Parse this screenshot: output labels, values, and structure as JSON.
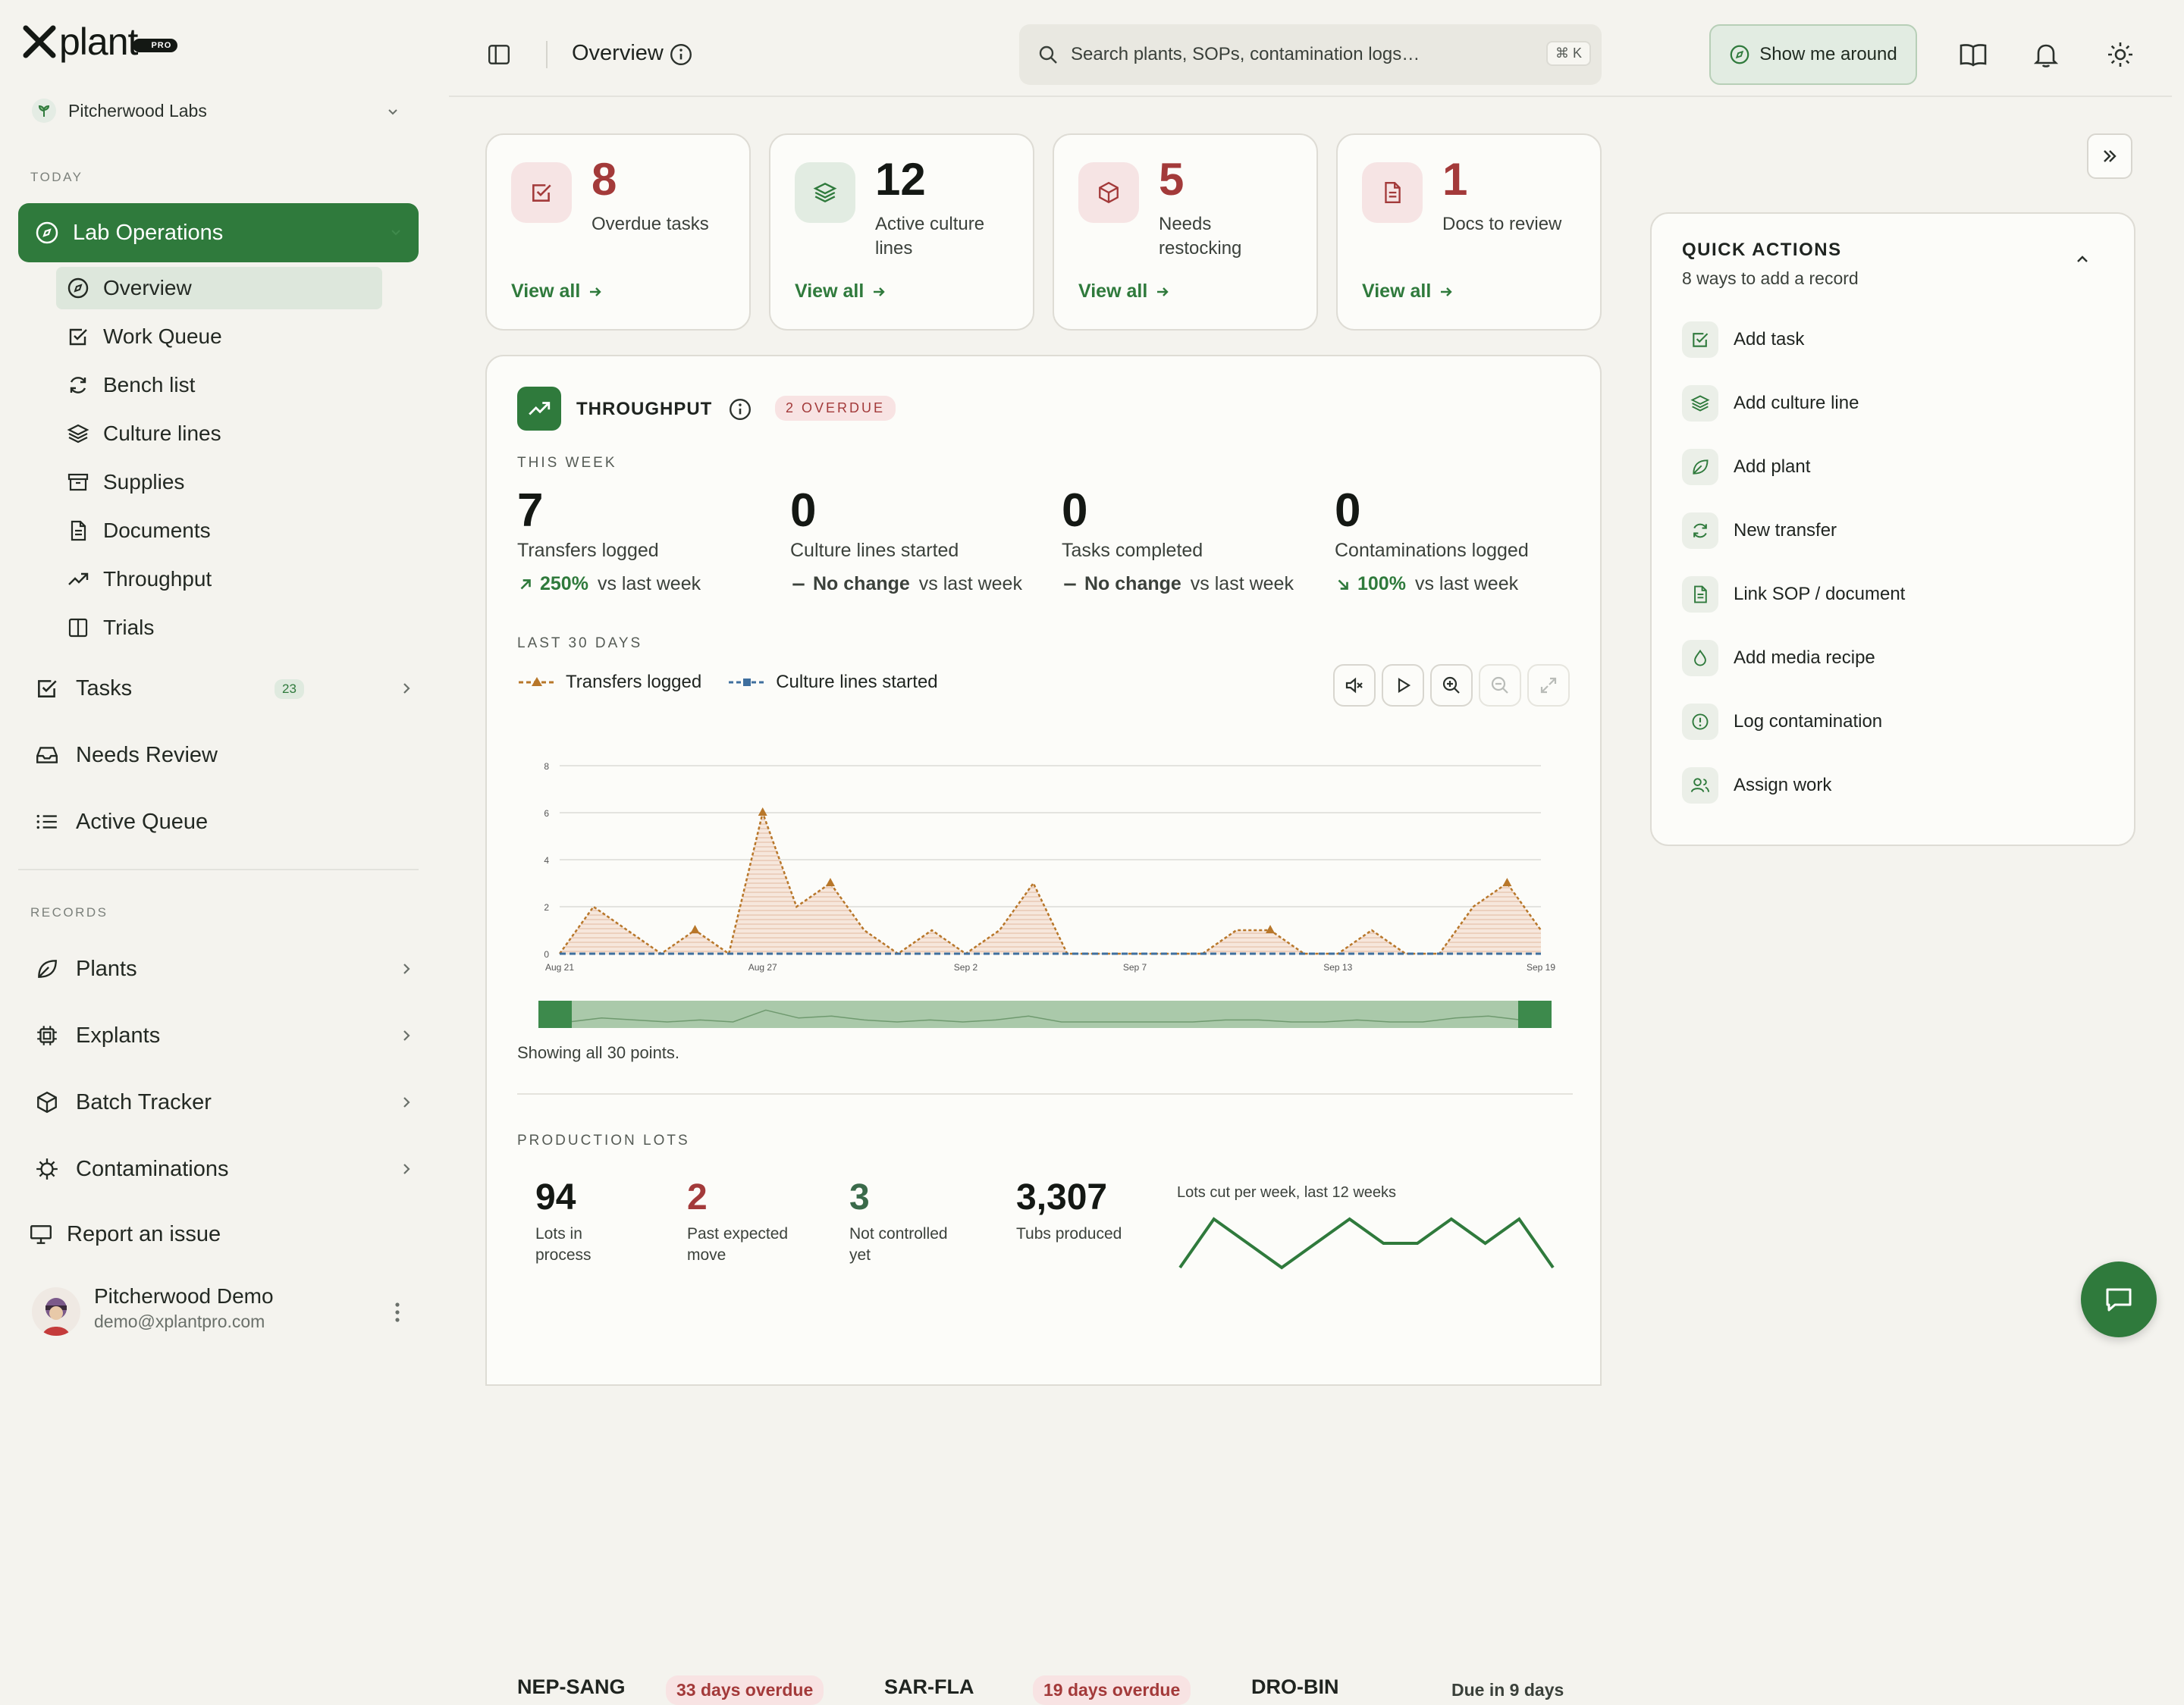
{
  "brand": {
    "name": "plant",
    "badge": "PRO"
  },
  "org": {
    "name": "Pitcherwood Labs"
  },
  "sidebar": {
    "today_label": "TODAY",
    "records_label": "RECORDS",
    "lab_ops": "Lab Operations",
    "sub_items": [
      "Overview",
      "Work Queue",
      "Bench list",
      "Culture lines",
      "Supplies",
      "Documents",
      "Throughput",
      "Trials"
    ],
    "tasks": {
      "label": "Tasks",
      "count": "23"
    },
    "needs_review": "Needs Review",
    "active_queue": "Active Queue",
    "records": [
      "Plants",
      "Explants",
      "Batch Tracker",
      "Contaminations"
    ],
    "report": "Report an issue"
  },
  "user": {
    "name": "Pitcherwood Demo",
    "email": "demo@xplantpro.com"
  },
  "topbar": {
    "title": "Overview",
    "search_placeholder": "Search plants, SOPs, contamination logs…",
    "shortcut": "⌘ K",
    "tour": "Show me around"
  },
  "stats": [
    {
      "value": "8",
      "label": "Overdue tasks",
      "link": "View all",
      "color": "#a33a3a"
    },
    {
      "value": "12",
      "label": "Active culture lines",
      "link": "View all",
      "color": "#141814"
    },
    {
      "value": "5",
      "label": "Needs restocking",
      "link": "View all",
      "color": "#a33a3a"
    },
    {
      "value": "1",
      "label": "Docs to review",
      "link": "View all",
      "color": "#a33a3a"
    }
  ],
  "throughput": {
    "title": "THROUGHPUT",
    "badge": "2 OVERDUE",
    "this_week": "THIS WEEK",
    "metrics": [
      {
        "value": "7",
        "label": "Transfers logged",
        "delta": "250%",
        "vs": "vs last week",
        "dir": "up"
      },
      {
        "value": "0",
        "label": "Culture lines started",
        "delta": "No change",
        "vs": "vs last week",
        "dir": "flat"
      },
      {
        "value": "0",
        "label": "Tasks completed",
        "delta": "No change",
        "vs": "vs last week",
        "dir": "flat"
      },
      {
        "value": "0",
        "label": "Contaminations logged",
        "delta": "100%",
        "vs": "vs last week",
        "dir": "down"
      }
    ],
    "last30": "LAST 30 DAYS",
    "showing": "Showing all 30 points."
  },
  "chart_data": {
    "type": "area",
    "x": [
      "Aug 21",
      "Aug 22",
      "Aug 23",
      "Aug 24",
      "Aug 25",
      "Aug 26",
      "Aug 27",
      "Aug 28",
      "Aug 29",
      "Aug 30",
      "Aug 31",
      "Sep 1",
      "Sep 2",
      "Sep 3",
      "Sep 4",
      "Sep 5",
      "Sep 6",
      "Sep 7",
      "Sep 8",
      "Sep 9",
      "Sep 10",
      "Sep 11",
      "Sep 12",
      "Sep 13",
      "Sep 14",
      "Sep 15",
      "Sep 16",
      "Sep 17",
      "Sep 18",
      "Sep 19"
    ],
    "xticks": [
      "Aug 21",
      "Aug 27",
      "Sep 2",
      "Sep 7",
      "Sep 13",
      "Sep 19"
    ],
    "yticks": [
      "0",
      "2",
      "4",
      "6",
      "8"
    ],
    "ylim": [
      0,
      8
    ],
    "series": [
      {
        "name": "Transfers logged",
        "color": "#b8772a",
        "values": [
          0,
          2,
          1,
          0,
          1,
          0,
          6,
          2,
          3,
          1,
          0,
          1,
          0,
          1,
          3,
          0,
          0,
          0,
          0,
          0,
          1,
          1,
          0,
          0,
          1,
          0,
          0,
          2,
          3,
          1
        ]
      },
      {
        "name": "Culture lines started",
        "color": "#3f6f9e",
        "values": [
          0,
          0,
          0,
          0,
          0,
          0,
          0,
          0,
          0,
          0,
          0,
          0,
          0,
          0,
          0,
          0,
          0,
          0,
          0,
          0,
          0,
          0,
          0,
          0,
          0,
          0,
          0,
          0,
          0,
          0
        ]
      }
    ],
    "triangle_points": [
      4,
      6,
      8,
      21,
      28
    ],
    "grid": true,
    "legend": "top-left"
  },
  "production": {
    "title": "PRODUCTION LOTS",
    "stats": [
      {
        "value": "94",
        "label": "Lots in process",
        "color": "#141814"
      },
      {
        "value": "2",
        "label": "Past expected move",
        "color": "#a33a3a"
      },
      {
        "value": "3",
        "label": "Not controlled yet",
        "color": "#3a6a4a"
      },
      {
        "value": "3,307",
        "label": "Tubs produced",
        "color": "#141814"
      }
    ],
    "spark_title": "Lots cut per week, last 12 weeks",
    "spark": [
      3,
      5,
      4,
      3,
      4,
      5,
      4,
      4,
      5,
      4,
      5,
      3
    ],
    "lots": [
      {
        "code": "NEP-SANG",
        "status": "33 days overdue"
      },
      {
        "code": "SAR-FLA",
        "status": "19 days overdue"
      },
      {
        "code": "DRO-BIN",
        "status": "Due in 9 days"
      }
    ]
  },
  "quick_actions": {
    "title": "QUICK ACTIONS",
    "subtitle": "8 ways to add a record",
    "items": [
      {
        "label": "Add task",
        "icon": "check-square-icon"
      },
      {
        "label": "Add culture line",
        "icon": "layers-icon"
      },
      {
        "label": "Add plant",
        "icon": "leaf-icon"
      },
      {
        "label": "New transfer",
        "icon": "refresh-icon"
      },
      {
        "label": "Link SOP / document",
        "icon": "document-icon"
      },
      {
        "label": "Add media recipe",
        "icon": "droplet-icon"
      },
      {
        "label": "Log contamination",
        "icon": "alert-circle-icon"
      },
      {
        "label": "Assign work",
        "icon": "users-icon"
      }
    ]
  }
}
